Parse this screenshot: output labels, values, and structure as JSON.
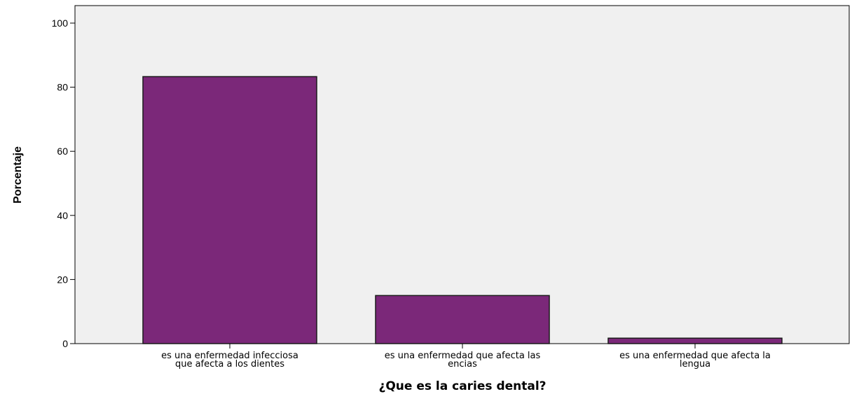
{
  "chart_data": {
    "type": "bar",
    "categories": [
      [
        "es una enfermedad infecciosa",
        "que afecta a los dientes"
      ],
      [
        "es una enfermedad que afecta las",
        "encias"
      ],
      [
        "es una enfermedad que afecta la",
        "lengua"
      ]
    ],
    "values": [
      83.3,
      15.0,
      1.7
    ],
    "title": "",
    "xlabel": "¿Que es la caries dental?",
    "ylabel": "Porcentaje",
    "ylim": [
      0,
      100
    ],
    "yticks": [
      0,
      20,
      40,
      60,
      80,
      100
    ],
    "grid": false,
    "legend": "none",
    "colors": {
      "bar": "#7b2879",
      "plot_bg": "#f0f0f0",
      "axis": "#000000"
    }
  }
}
